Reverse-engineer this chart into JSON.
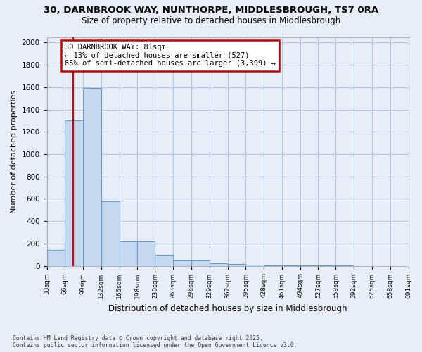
{
  "title_line1": "30, DARNBROOK WAY, NUNTHORPE, MIDDLESBROUGH, TS7 0RA",
  "title_line2": "Size of property relative to detached houses in Middlesbrough",
  "xlabel": "Distribution of detached houses by size in Middlesbrough",
  "ylabel": "Number of detached properties",
  "bin_edges": [
    33,
    66,
    99,
    132,
    165,
    198,
    230,
    263,
    296,
    329,
    362,
    395,
    428,
    461,
    494,
    527,
    559,
    592,
    625,
    658,
    691
  ],
  "values": [
    140,
    1300,
    1590,
    580,
    215,
    215,
    100,
    50,
    45,
    22,
    18,
    8,
    4,
    2,
    1,
    1,
    1,
    0,
    0,
    0
  ],
  "bar_color": "#c5d8f0",
  "bar_edge_color": "#5b9bd5",
  "property_size": 81,
  "annotation_line1": "30 DARNBROOK WAY: 81sqm",
  "annotation_line2": "← 13% of detached houses are smaller (527)",
  "annotation_line3": "85% of semi-detached houses are larger (3,399) →",
  "vline_color": "#cc0000",
  "annotation_box_edgecolor": "#cc0000",
  "ylim": [
    0,
    2050
  ],
  "yticks": [
    0,
    200,
    400,
    600,
    800,
    1000,
    1200,
    1400,
    1600,
    1800,
    2000
  ],
  "grid_color": "#b0c4de",
  "background_color": "#e8eef8",
  "footnote1": "Contains HM Land Registry data © Crown copyright and database right 2025.",
  "footnote2": "Contains public sector information licensed under the Open Government Licence v3.0."
}
